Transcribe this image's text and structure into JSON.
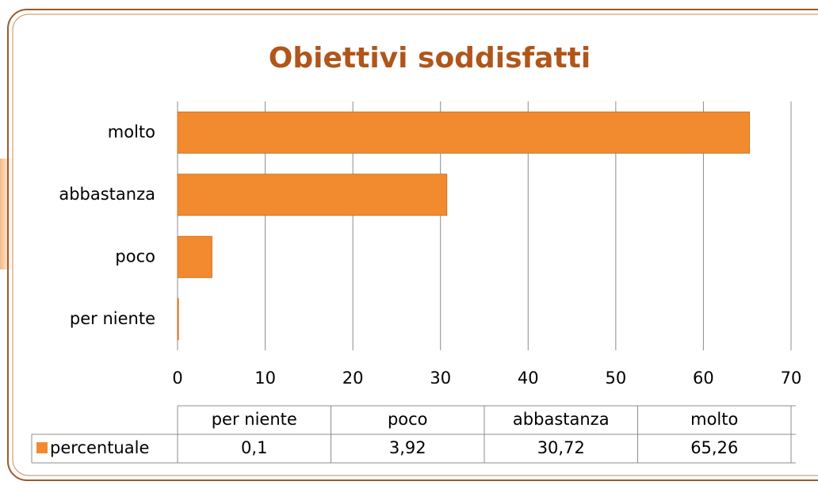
{
  "chart_data": {
    "type": "bar",
    "orientation": "horizontal",
    "title": "Obiettivi soddisfatti",
    "categories": [
      "per niente",
      "poco",
      "abbastanza",
      "molto"
    ],
    "series": [
      {
        "name": "percentuale",
        "color": "#f28b30",
        "values": [
          0.1,
          3.92,
          30.72,
          65.26
        ],
        "value_labels": [
          "0,1",
          "3,92",
          "30,72",
          "65,26"
        ]
      }
    ],
    "xlim": [
      0,
      70
    ],
    "xticks": [
      0,
      10,
      20,
      30,
      40,
      50,
      60,
      70
    ],
    "grid": true,
    "data_table": true
  }
}
